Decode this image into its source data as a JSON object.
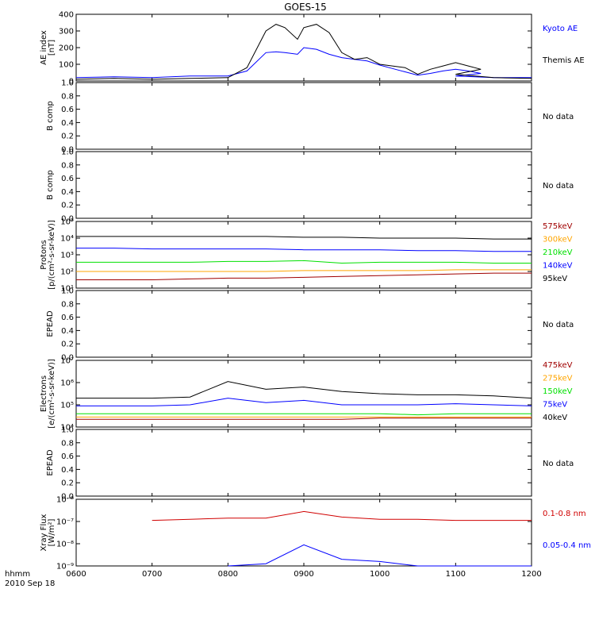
{
  "title": "GOES-15",
  "colors": {
    "black": "#000000",
    "blue": "#0000ff",
    "red": "#d00000",
    "orange": "#ffa500",
    "green": "#00e000",
    "darkred": "#a00000"
  },
  "footer": {
    "time_label": "hhmm",
    "date_label": "2010 Sep 18"
  },
  "chart_data": [
    {
      "id": "ae",
      "type": "line",
      "ylabel": [
        "AE index",
        "[nT]"
      ],
      "ylim": [
        0,
        400
      ],
      "yticks": [
        "0",
        "100",
        "200",
        "300",
        "400"
      ],
      "x": [
        "0600",
        "0630",
        "0700",
        "0730",
        "0800",
        "0815",
        "0830",
        "0838",
        "0845",
        "0855",
        "0900",
        "0910",
        "0920",
        "0930",
        "0940",
        "0950",
        "1000",
        "1010",
        "1020",
        "1030",
        "1040",
        "1050",
        "1060",
        "1070",
        "1080",
        "1100",
        "1130",
        "1200"
      ],
      "series": [
        {
          "name": "Kyoto AE",
          "color": "#0000ff",
          "values": [
            20,
            25,
            20,
            30,
            30,
            60,
            170,
            175,
            170,
            160,
            200,
            190,
            160,
            140,
            130,
            120,
            95,
            75,
            55,
            35,
            45,
            60,
            70,
            60,
            45,
            30,
            20,
            20
          ]
        },
        {
          "name": "Themis AE",
          "color": "#000000",
          "values": [
            10,
            15,
            10,
            15,
            20,
            80,
            300,
            340,
            320,
            250,
            320,
            340,
            290,
            170,
            130,
            140,
            100,
            90,
            80,
            40,
            70,
            90,
            110,
            90,
            70,
            40,
            20,
            15
          ]
        }
      ]
    },
    {
      "id": "bcomp1",
      "type": "line",
      "ylabel": [
        "B comp"
      ],
      "ylim": [
        0,
        1.0
      ],
      "yticks": [
        "0.0",
        "0.2",
        "0.4",
        "0.6",
        "0.8",
        "1.0"
      ],
      "message": "No data"
    },
    {
      "id": "bcomp2",
      "type": "line",
      "ylabel": [
        "B comp"
      ],
      "ylim": [
        0,
        1.0
      ],
      "yticks": [
        "0.0",
        "0.2",
        "0.4",
        "0.6",
        "0.8",
        "1.0"
      ],
      "message": "No data"
    },
    {
      "id": "protons",
      "type": "line",
      "log": true,
      "ylabel": [
        "Protons",
        "[p/(cm²-s-sr-keV)]"
      ],
      "ylim_exp": [
        1,
        5
      ],
      "yticks": [
        "10¹",
        "10²",
        "10³",
        "10⁴",
        "10⁵"
      ],
      "series": [
        {
          "name": "575keV",
          "color": "#a00000",
          "values_log": [
            1.5,
            1.5,
            1.5,
            1.55,
            1.6,
            1.6,
            1.65,
            1.7,
            1.75,
            1.8,
            1.85,
            1.9,
            1.9
          ]
        },
        {
          "name": "300keV",
          "color": "#ffa500",
          "values_log": [
            2.0,
            2.0,
            2.0,
            2.0,
            2.0,
            2.0,
            2.05,
            2.05,
            2.05,
            2.05,
            2.1,
            2.1,
            2.1
          ]
        },
        {
          "name": "210keV",
          "color": "#00e000",
          "values_log": [
            2.55,
            2.55,
            2.55,
            2.55,
            2.6,
            2.6,
            2.65,
            2.5,
            2.55,
            2.55,
            2.55,
            2.5,
            2.5
          ]
        },
        {
          "name": "140keV",
          "color": "#0000ff",
          "values_log": [
            3.4,
            3.4,
            3.35,
            3.35,
            3.35,
            3.35,
            3.3,
            3.3,
            3.3,
            3.25,
            3.25,
            3.2,
            3.2
          ]
        },
        {
          "name": "95keV",
          "color": "#000000",
          "values_log": [
            4.1,
            4.1,
            4.1,
            4.1,
            4.1,
            4.1,
            4.05,
            4.05,
            4.0,
            4.0,
            4.0,
            3.95,
            3.95
          ]
        }
      ]
    },
    {
      "id": "epead1",
      "type": "line",
      "ylabel": [
        "EPEAD"
      ],
      "ylim": [
        0,
        1.0
      ],
      "yticks": [
        "0.0",
        "0.2",
        "0.4",
        "0.6",
        "0.8",
        "1.0"
      ],
      "message": "No data"
    },
    {
      "id": "electrons",
      "type": "line",
      "log": true,
      "ylabel": [
        "Electrons",
        "[e/(cm²-s-sr-keV)]"
      ],
      "ylim_exp": [
        4,
        7
      ],
      "yticks": [
        "10⁴",
        "10⁵",
        "10⁶",
        "10⁷"
      ],
      "series": [
        {
          "name": "475keV",
          "color": "#a00000",
          "values_log": [
            4.35,
            4.35,
            4.35,
            4.35,
            4.35,
            4.35,
            4.35,
            4.35,
            4.4,
            4.4,
            4.4,
            4.4,
            4.4
          ]
        },
        {
          "name": "275keV",
          "color": "#ffa500",
          "values_log": [
            4.45,
            4.45,
            4.45,
            4.45,
            4.45,
            4.45,
            4.45,
            4.45,
            4.45,
            4.45,
            4.45,
            4.45,
            4.45
          ]
        },
        {
          "name": "150keV",
          "color": "#00e000",
          "values_log": [
            4.6,
            4.6,
            4.6,
            4.6,
            4.6,
            4.6,
            4.6,
            4.6,
            4.6,
            4.55,
            4.6,
            4.6,
            4.6
          ]
        },
        {
          "name": "75keV",
          "color": "#0000ff",
          "values_log": [
            4.95,
            4.95,
            4.95,
            5.0,
            5.3,
            5.1,
            5.2,
            5.0,
            5.0,
            5.0,
            5.05,
            5.0,
            4.95
          ]
        },
        {
          "name": "40keV",
          "color": "#000000",
          "values_log": [
            5.3,
            5.3,
            5.3,
            5.35,
            6.05,
            5.7,
            5.8,
            5.6,
            5.5,
            5.45,
            5.45,
            5.4,
            5.3
          ]
        }
      ]
    },
    {
      "id": "epead2",
      "type": "line",
      "ylabel": [
        "EPEAD"
      ],
      "ylim": [
        0,
        1.0
      ],
      "yticks": [
        "0.0",
        "0.2",
        "0.4",
        "0.6",
        "0.8",
        "1.0"
      ],
      "message": "No data"
    },
    {
      "id": "xray",
      "type": "line",
      "log": true,
      "ylabel": [
        "Xray Flux",
        "[W/m²]"
      ],
      "ylim_exp": [
        -9,
        -6
      ],
      "yticks": [
        "10⁻⁹",
        "10⁻⁸",
        "10⁻⁷",
        "10⁻⁶"
      ],
      "series": [
        {
          "name": "0.1-0.8 nm",
          "color": "#d00000",
          "values_log": [
            null,
            null,
            -6.95,
            -6.9,
            -6.85,
            -6.85,
            -6.55,
            -6.8,
            -6.9,
            -6.9,
            -6.95,
            -6.95,
            -6.95
          ]
        },
        {
          "name": "0.05-0.4 nm",
          "color": "#0000ff",
          "values_log": [
            null,
            null,
            null,
            null,
            -9.0,
            -8.9,
            -8.05,
            -8.7,
            -8.8,
            -9.0,
            -9.0,
            -9.0,
            -9.0
          ]
        }
      ]
    }
  ],
  "x_axis": {
    "ticks": [
      "0600",
      "0700",
      "0800",
      "0900",
      "1000",
      "1100",
      "1200"
    ]
  }
}
